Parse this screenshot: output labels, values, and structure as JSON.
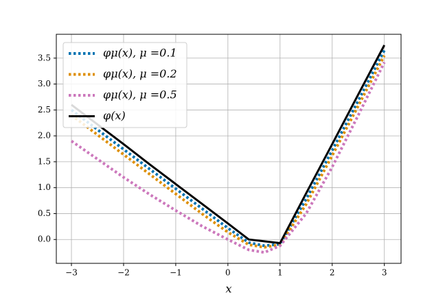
{
  "chart_data": {
    "type": "line",
    "xlabel": "x",
    "x": [
      -3,
      -2.5,
      -2,
      -1.5,
      -1,
      -0.5,
      0,
      0.4,
      0.7,
      1,
      1.5,
      2,
      2.5,
      3
    ],
    "series": [
      {
        "name": "φμ(x), μ =0.1",
        "color": "#0173b2",
        "style": "dotted",
        "values": [
          2.5,
          2.12,
          1.74,
          1.36,
          0.98,
          0.6,
          0.22,
          -0.06,
          -0.12,
          -0.09,
          0.78,
          1.72,
          2.68,
          3.65
        ]
      },
      {
        "name": "φμ(x), μ =0.2",
        "color": "#de8f05",
        "style": "dotted",
        "values": [
          2.4,
          2.02,
          1.64,
          1.26,
          0.88,
          0.5,
          0.14,
          -0.1,
          -0.15,
          -0.1,
          0.68,
          1.62,
          2.58,
          3.55
        ]
      },
      {
        "name": "φμ(x), μ =0.5",
        "color": "#cc78bc",
        "style": "dotted",
        "values": [
          1.9,
          1.55,
          1.2,
          0.87,
          0.56,
          0.26,
          0.0,
          -0.2,
          -0.25,
          -0.12,
          0.5,
          1.4,
          2.4,
          3.42
        ]
      },
      {
        "name": "φ(x)",
        "color": "#000000",
        "style": "solid",
        "values": [
          2.6,
          2.22,
          1.84,
          1.45,
          1.07,
          0.69,
          0.31,
          0.0,
          -0.035,
          -0.07,
          0.89,
          1.84,
          2.8,
          3.75
        ]
      }
    ],
    "xlim": [
      -3.29,
      3.32
    ],
    "ylim": [
      -0.46,
      3.96
    ],
    "xticks": [
      {
        "value": -3,
        "label": "−3"
      },
      {
        "value": -2,
        "label": "−2"
      },
      {
        "value": -1,
        "label": "−1"
      },
      0,
      1,
      2,
      3
    ],
    "yticks": [
      {
        "value": 0,
        "label": "0.0"
      },
      {
        "value": 0.5,
        "label": "0.5"
      },
      {
        "value": 1,
        "label": "1.0"
      },
      {
        "value": 1.5,
        "label": "1.5"
      },
      {
        "value": 2,
        "label": "2.0"
      },
      {
        "value": 2.5,
        "label": "2.5"
      },
      {
        "value": 3,
        "label": "3.0"
      },
      {
        "value": 3.5,
        "label": "3.5"
      }
    ],
    "grid": true,
    "legend": "upper left"
  }
}
